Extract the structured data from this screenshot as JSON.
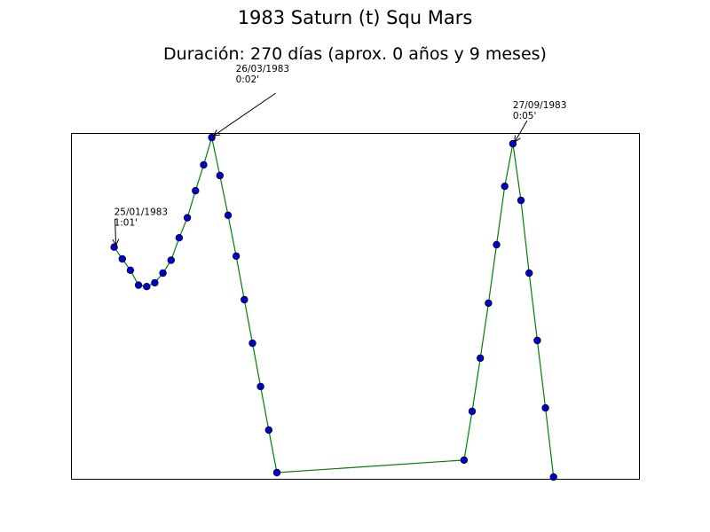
{
  "chart_data": {
    "type": "line",
    "title": "1983 Saturn (t) Squ Mars",
    "subtitle": "Duración: 270 días (aprox. 0 años y 9 meses)",
    "xlabel": "",
    "ylabel": "",
    "grid": false,
    "axes_ticks": false,
    "colors": {
      "line": "#008000",
      "marker_fill": "#0000cc",
      "marker_edge": "#000033"
    },
    "series": [
      {
        "values": [
          {
            "x": 0,
            "y": 0.67
          },
          {
            "x": 1,
            "y": 0.636
          },
          {
            "x": 2,
            "y": 0.603
          },
          {
            "x": 3,
            "y": 0.56
          },
          {
            "x": 4,
            "y": 0.556
          },
          {
            "x": 5,
            "y": 0.567
          },
          {
            "x": 6,
            "y": 0.595
          },
          {
            "x": 7,
            "y": 0.632
          },
          {
            "x": 8,
            "y": 0.697
          },
          {
            "x": 9,
            "y": 0.755
          },
          {
            "x": 10,
            "y": 0.833
          },
          {
            "x": 11,
            "y": 0.908
          },
          {
            "x": 12,
            "y": 0.987
          },
          {
            "x": 13,
            "y": 0.877
          },
          {
            "x": 14,
            "y": 0.762
          },
          {
            "x": 15,
            "y": 0.644
          },
          {
            "x": 16,
            "y": 0.518
          },
          {
            "x": 17,
            "y": 0.392
          },
          {
            "x": 18,
            "y": 0.267
          },
          {
            "x": 19,
            "y": 0.141
          },
          {
            "x": 20,
            "y": 0.018
          },
          {
            "x": 43,
            "y": 0.054
          },
          {
            "x": 44,
            "y": 0.195
          },
          {
            "x": 45,
            "y": 0.349
          },
          {
            "x": 46,
            "y": 0.508
          },
          {
            "x": 47,
            "y": 0.677
          },
          {
            "x": 48,
            "y": 0.846
          },
          {
            "x": 49,
            "y": 0.969
          },
          {
            "x": 50,
            "y": 0.805
          },
          {
            "x": 51,
            "y": 0.595
          },
          {
            "x": 52,
            "y": 0.4
          },
          {
            "x": 53,
            "y": 0.205
          },
          {
            "x": 54,
            "y": 0.005
          }
        ]
      }
    ],
    "xlim": [
      -5.3,
      64.5
    ],
    "ylim": [
      0,
      1.0
    ],
    "annotations": [
      {
        "x": 0,
        "y": 0.67,
        "date": "25/01/1983",
        "value": "1:01'"
      },
      {
        "x": 12,
        "y": 0.987,
        "date": "26/03/1983",
        "value": "0:02'"
      },
      {
        "x": 49,
        "y": 0.969,
        "date": "27/09/1983",
        "value": "0:05'"
      }
    ]
  }
}
